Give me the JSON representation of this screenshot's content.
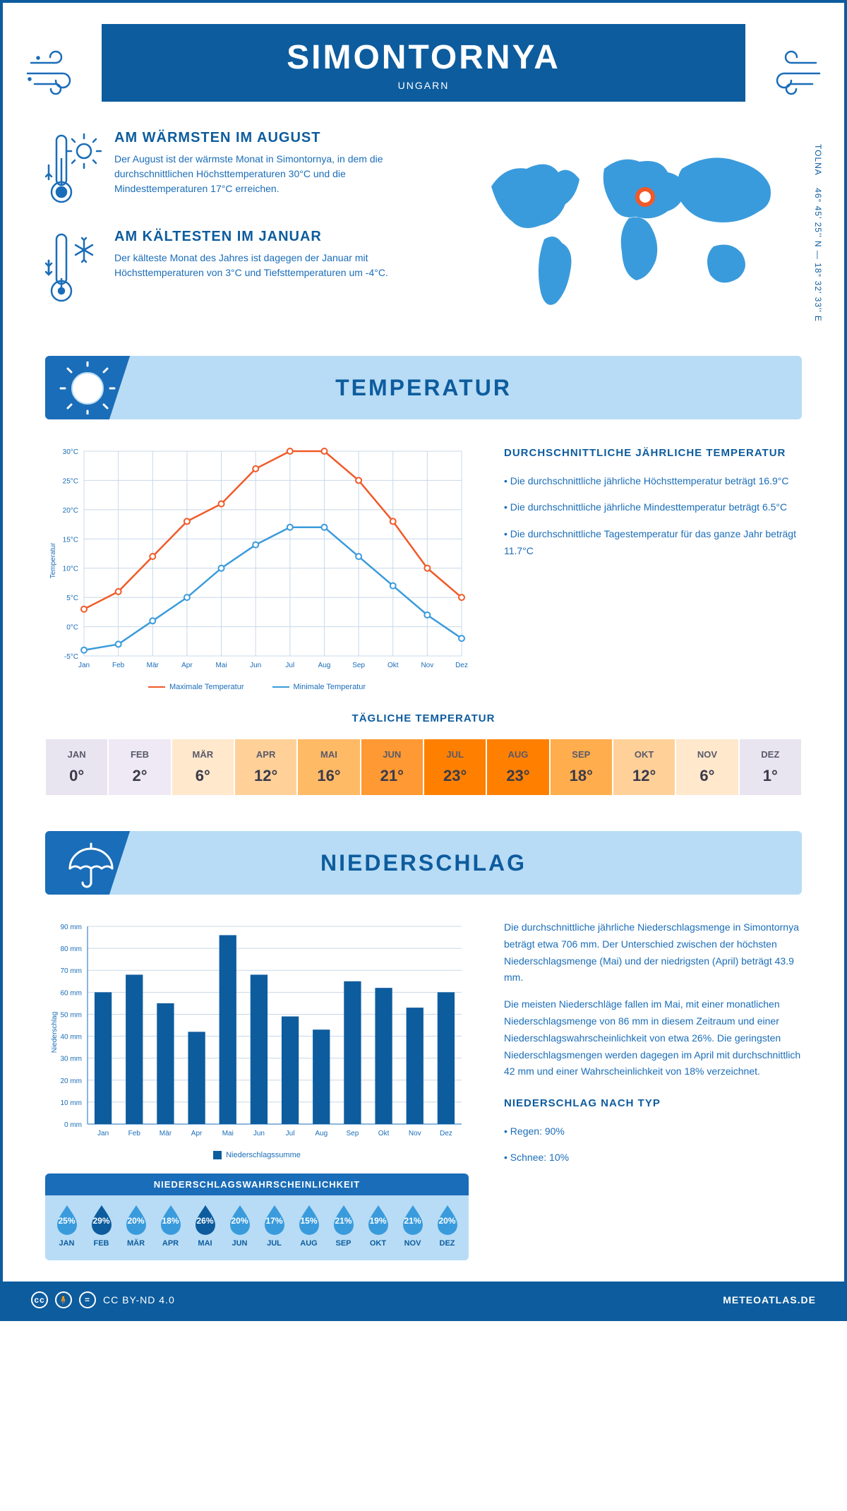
{
  "header": {
    "city": "SIMONTORNYA",
    "country": "UNGARN"
  },
  "coords": {
    "region": "TOLNA",
    "lat": "46° 45' 25'' N",
    "lon": "18° 32' 33'' E"
  },
  "facts": {
    "warm": {
      "title": "AM WÄRMSTEN IM AUGUST",
      "text": "Der August ist der wärmste Monat in Simontornya, in dem die durchschnittlichen Höchsttemperaturen 30°C und die Mindesttemperaturen 17°C erreichen."
    },
    "cold": {
      "title": "AM KÄLTESTEN IM JANUAR",
      "text": "Der kälteste Monat des Jahres ist dagegen der Januar mit Höchsttemperaturen von 3°C und Tiefsttemperaturen um -4°C."
    }
  },
  "sections": {
    "temp": "TEMPERATUR",
    "precip": "NIEDERSCHLAG"
  },
  "months": [
    "Jan",
    "Feb",
    "Mär",
    "Apr",
    "Mai",
    "Jun",
    "Jul",
    "Aug",
    "Sep",
    "Okt",
    "Nov",
    "Dez"
  ],
  "months_uc": [
    "JAN",
    "FEB",
    "MÄR",
    "APR",
    "MAI",
    "JUN",
    "JUL",
    "AUG",
    "SEP",
    "OKT",
    "NOV",
    "DEZ"
  ],
  "temp_chart": {
    "type": "line",
    "ylabel": "Temperatur",
    "ylim": [
      -5,
      30
    ],
    "ytick_step": 5,
    "max_series": {
      "label": "Maximale Temperatur",
      "color": "#f05a28",
      "values": [
        3,
        6,
        12,
        18,
        21,
        27,
        30,
        30,
        25,
        18,
        10,
        5
      ]
    },
    "min_series": {
      "label": "Minimale Temperatur",
      "color": "#3a9bdc",
      "values": [
        -4,
        -3,
        1,
        5,
        10,
        14,
        17,
        17,
        12,
        7,
        2,
        -2
      ]
    },
    "grid_color": "#c8d8e8",
    "background": "#ffffff",
    "line_width": 2.5,
    "marker": "circle"
  },
  "temp_text": {
    "title": "DURCHSCHNITTLICHE JÄHRLICHE TEMPERATUR",
    "b1": "• Die durchschnittliche jährliche Höchsttemperatur beträgt 16.9°C",
    "b2": "• Die durchschnittliche jährliche Mindesttemperatur beträgt 6.5°C",
    "b3": "• Die durchschnittliche Tagestemperatur für das ganze Jahr beträgt 11.7°C"
  },
  "daily_temp": {
    "title": "TÄGLICHE TEMPERATUR",
    "values": [
      "0°",
      "2°",
      "6°",
      "12°",
      "16°",
      "21°",
      "23°",
      "23°",
      "18°",
      "12°",
      "6°",
      "1°"
    ],
    "colors": [
      "#e8e4f0",
      "#eee9f4",
      "#ffe8cc",
      "#ffd199",
      "#ffba66",
      "#ff9933",
      "#ff8000",
      "#ff8000",
      "#ffad4d",
      "#ffd199",
      "#ffe8cc",
      "#e8e4f0"
    ]
  },
  "precip_chart": {
    "type": "bar",
    "ylabel": "Niederschlag",
    "ylim": [
      0,
      90
    ],
    "ytick_step": 10,
    "y_unit": "mm",
    "values": [
      60,
      68,
      55,
      42,
      86,
      68,
      49,
      43,
      65,
      62,
      53,
      60
    ],
    "bar_color": "#0d5c9e",
    "legend": "Niederschlagssumme",
    "grid_color": "#c8d8e8",
    "bar_width": 0.55
  },
  "precip_text": {
    "p1": "Die durchschnittliche jährliche Niederschlagsmenge in Simontornya beträgt etwa 706 mm. Der Unterschied zwischen der höchsten Niederschlagsmenge (Mai) und der niedrigsten (April) beträgt 43.9 mm.",
    "p2": "Die meisten Niederschläge fallen im Mai, mit einer monatlichen Niederschlagsmenge von 86 mm in diesem Zeitraum und einer Niederschlagswahrscheinlichkeit von etwa 26%. Die geringsten Niederschlagsmengen werden dagegen im April mit durchschnittlich 42 mm und einer Wahrscheinlichkeit von 18% verzeichnet.",
    "type_title": "NIEDERSCHLAG NACH TYP",
    "rain": "• Regen: 90%",
    "snow": "• Schnee: 10%"
  },
  "prob": {
    "title": "NIEDERSCHLAGSWAHRSCHEINLICHKEIT",
    "values": [
      "25%",
      "29%",
      "20%",
      "18%",
      "26%",
      "20%",
      "17%",
      "15%",
      "21%",
      "19%",
      "21%",
      "20%"
    ],
    "dark": [
      false,
      true,
      false,
      false,
      true,
      false,
      false,
      false,
      false,
      false,
      false,
      false
    ],
    "color_light": "#3a9bdc",
    "color_dark": "#0d5c9e"
  },
  "footer": {
    "license": "CC BY-ND 4.0",
    "site": "METEOATLAS.DE"
  },
  "palette": {
    "primary": "#0d5c9e",
    "light": "#b8dcf5",
    "mid": "#1a6db8",
    "map": "#3a9bdc"
  }
}
